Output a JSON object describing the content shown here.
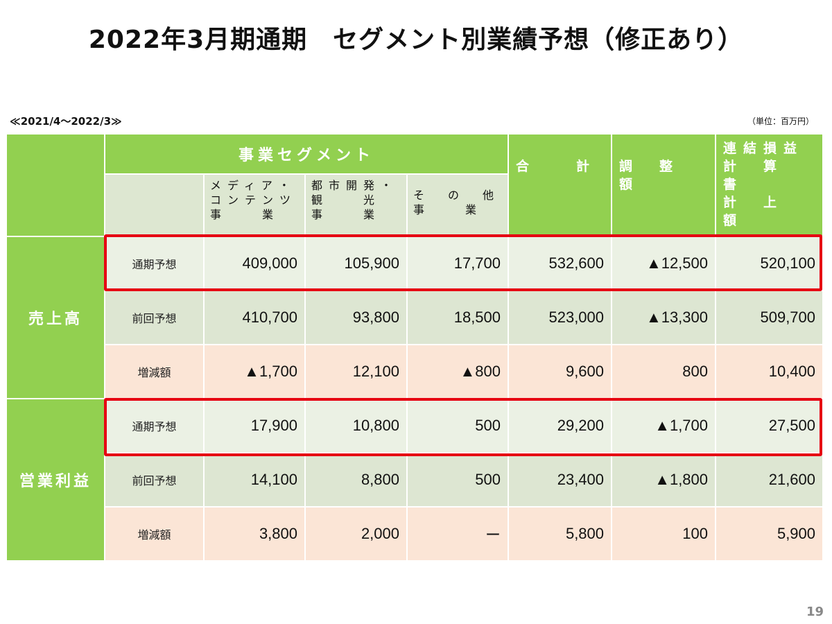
{
  "title": "2022年3月期通期　セグメント別業績予想（修正あり）",
  "period": "≪2021/4～2022/3≫",
  "unit": "（単位：百万円）",
  "page_number": "19",
  "table": {
    "segment_header": "事業セグメント",
    "segment_columns": [
      [
        "メディア・",
        "コンテンツ",
        "事　　業"
      ],
      [
        "都市開発・",
        "観　　光",
        "事　　業"
      ],
      [
        "そ　の　他",
        "事　　業"
      ]
    ],
    "total_header": "合　　計",
    "adjust_header": "調　整　額",
    "consolidated_header": [
      "連結損益",
      "計　算　書",
      "計　上　額"
    ],
    "groups": [
      {
        "name": "売上高",
        "rows": [
          {
            "label": "通期予想",
            "values": [
              "409,000",
              "105,900",
              "17,700",
              "532,600",
              "▲12,500",
              "520,100"
            ]
          },
          {
            "label": "前回予想",
            "values": [
              "410,700",
              "93,800",
              "18,500",
              "523,000",
              "▲13,300",
              "509,700"
            ]
          },
          {
            "label": "増減額",
            "values": [
              "▲1,700",
              "12,100",
              "▲800",
              "9,600",
              "800",
              "10,400"
            ]
          }
        ]
      },
      {
        "name": "営業利益",
        "rows": [
          {
            "label": "通期予想",
            "values": [
              "17,900",
              "10,800",
              "500",
              "29,200",
              "▲1,700",
              "27,500"
            ]
          },
          {
            "label": "前回予想",
            "values": [
              "14,100",
              "8,800",
              "500",
              "23,400",
              "▲1,800",
              "21,600"
            ]
          },
          {
            "label": "増減額",
            "values": [
              "3,800",
              "2,000",
              "ー",
              "5,800",
              "100",
              "5,900"
            ]
          }
        ]
      }
    ]
  },
  "colors": {
    "header_green": "#92d050",
    "subheader": "#dde7d1",
    "row_light": "#ebf1e4",
    "row_mid": "#dde6d2",
    "row_peach": "#fbe5d6",
    "highlight_red": "#e60012"
  }
}
